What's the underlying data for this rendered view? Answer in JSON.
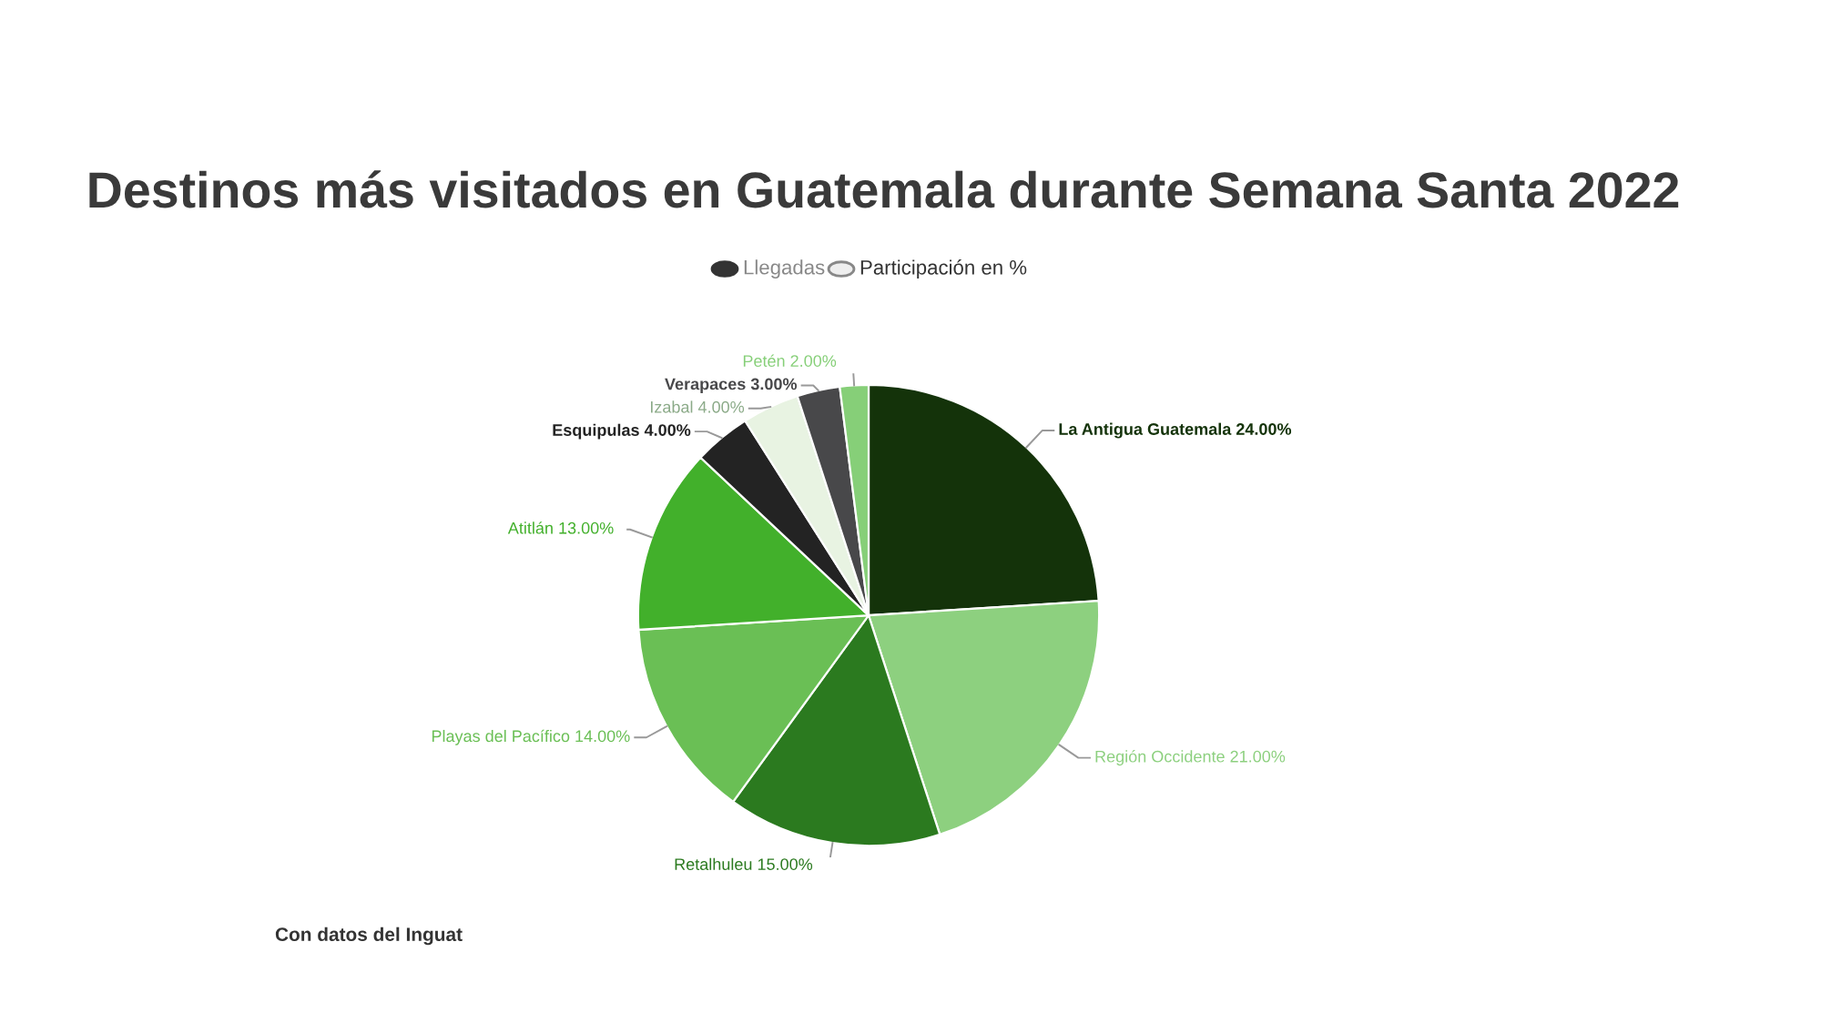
{
  "chart_data": {
    "type": "pie",
    "title": "Destinos más visitados en Guatemala durante Semana Santa 2022",
    "categories": [
      "La Antigua Guatemala",
      "Región Occidente",
      "Retalhuleu",
      "Playas del Pacífico",
      "Atitlán",
      "Esquipulas",
      "Izabal",
      "Verapaces",
      "Petén"
    ],
    "values": [
      24,
      21,
      15,
      14,
      13,
      4,
      4,
      3,
      2
    ],
    "value_labels": [
      "24.00%",
      "21.00%",
      "15.00%",
      "14.00%",
      "13.00%",
      "4.00%",
      "4.00%",
      "3.00%",
      "2.00%"
    ],
    "colors": [
      "#14330a",
      "#8dd07f",
      "#2b7a1f",
      "#6abf55",
      "#42b02b",
      "#232323",
      "#e8f3e2",
      "#48484a",
      "#86cf78"
    ],
    "annotations": [
      "Llegadas",
      "Participación en %",
      "Con datos del Inguat"
    ]
  }
}
